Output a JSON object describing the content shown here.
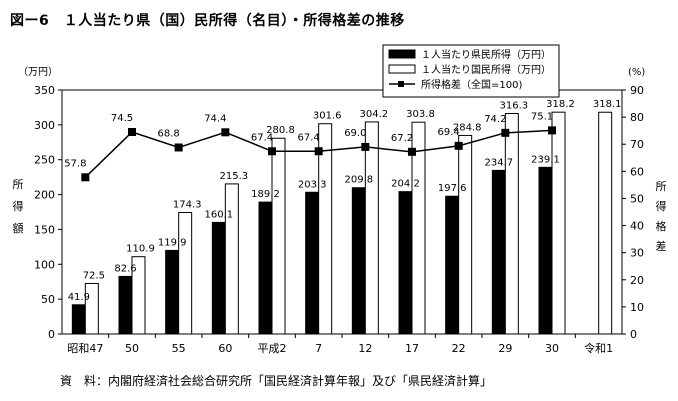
{
  "figure_title": "図ー6　１人当たり県（国）民所得（名目）・所得格差の推移",
  "source_note": "資　料：内閣府経済社会総合研究所「国民経済計算年報」及び「県民経済計算」",
  "chart_data": {
    "type": "bar",
    "categories": [
      "昭和47",
      "50",
      "55",
      "60",
      "平成2",
      "7",
      "12",
      "17",
      "22",
      "29",
      "30",
      "令和1"
    ],
    "series": [
      {
        "name": "１人当たり県民所得（万円）",
        "kind": "bar",
        "fill": "#000000",
        "values": [
          41.9,
          82.6,
          119.9,
          160.1,
          189.2,
          203.3,
          209.8,
          204.2,
          197.6,
          234.7,
          239.1,
          null
        ],
        "labels": [
          "41.9",
          "82.6",
          "119.9",
          "160.1",
          "189.2",
          "203.3",
          "209.8",
          "204.2",
          "197.6",
          "234.7",
          "239.1",
          ""
        ]
      },
      {
        "name": "１人当たり国民所得（万円）",
        "kind": "bar",
        "fill": "#ffffff",
        "values": [
          72.5,
          110.9,
          174.3,
          215.3,
          280.8,
          301.6,
          304.2,
          303.8,
          284.8,
          316.3,
          318.2,
          318.1
        ],
        "labels": [
          "72.5",
          "110.9",
          "174.3",
          "215.3",
          "280.8",
          "301.6",
          "304.2",
          "303.8",
          "284.8",
          "316.3",
          "318.2",
          "318.1"
        ]
      },
      {
        "name": "所得格差（全国=100)",
        "kind": "line",
        "axis": "right",
        "marker": "square",
        "values": [
          57.8,
          74.5,
          68.8,
          74.4,
          67.4,
          67.4,
          69.0,
          67.2,
          69.4,
          74.2,
          75.1,
          null
        ],
        "labels": [
          "57.8",
          "74.5",
          "68.8",
          "74.4",
          "67.4",
          "67.4",
          "69.0",
          "67.2",
          "69.4",
          "74.2",
          "75.1",
          ""
        ]
      }
    ],
    "y_left": {
      "unit": "（万円）",
      "label": "所得額",
      "ylim": [
        0,
        350
      ],
      "ticks": [
        "0",
        "50",
        "100",
        "150",
        "200",
        "250",
        "300",
        "350"
      ]
    },
    "y_right": {
      "unit": "(%)",
      "label": "所得格差",
      "ylim": [
        0,
        90
      ],
      "ticks": [
        "0",
        "10",
        "20",
        "30",
        "40",
        "50",
        "60",
        "70",
        "80",
        "90"
      ]
    },
    "grid": false,
    "legend_position": "top-right"
  }
}
